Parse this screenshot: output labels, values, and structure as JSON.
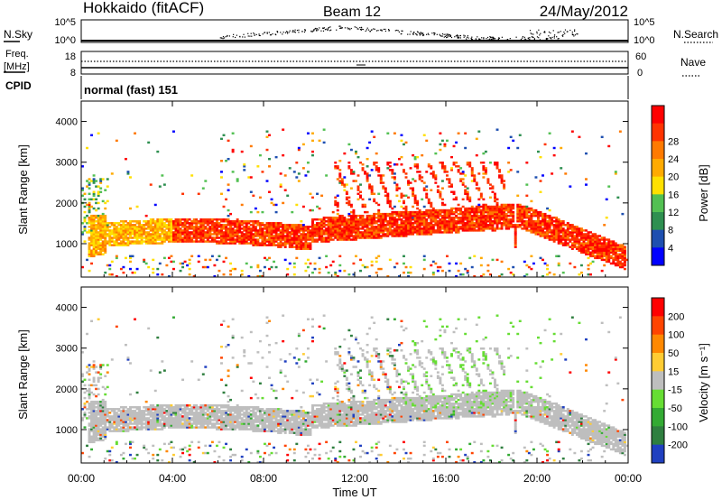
{
  "header": {
    "station": "Hokkaido (fitACF)",
    "beam": "Beam 12",
    "date": "24/May/2012"
  },
  "top_labels": {
    "nsky": "N.Sky",
    "freq_line1": "Freq.",
    "freq_line2": "[MHz]",
    "cpid": "CPID",
    "nsearch": "N.Search",
    "nave": "Nave",
    "cpid_value": "normal (fast) 151"
  },
  "chart_data": [
    {
      "type": "scatter",
      "panel": "noise",
      "ylabel_left": "N.Sky",
      "ylabel_right": "N.Search",
      "left_ticks": [
        "10^5",
        "10^0"
      ],
      "right_ticks": [
        "10^5",
        "10^0"
      ],
      "ylim_log10": [
        0,
        5
      ]
    },
    {
      "type": "line",
      "panel": "frequency",
      "ylabel_left": "Freq. [MHz]",
      "ylabel_right": "Nave",
      "left_ticks": [
        18,
        8
      ],
      "right_ticks": [
        60,
        0
      ]
    },
    {
      "type": "heatmap",
      "panel": "power",
      "ylabel": "Slant Range [km]",
      "y_ticks": [
        1000,
        2000,
        3000,
        4000
      ],
      "ylim": [
        180,
        4500
      ],
      "colorbar": {
        "label": "Power [dB]",
        "ticks": [
          4,
          8,
          12,
          16,
          20,
          24,
          28
        ],
        "colors": [
          "#0000ff",
          "#1e4fb0",
          "#2e8f50",
          "#52c052",
          "#ffe000",
          "#ffaa00",
          "#ff7a00",
          "#ff3300",
          "#ff0000"
        ]
      }
    },
    {
      "type": "heatmap",
      "panel": "velocity",
      "ylabel": "Slant Range [km]",
      "y_ticks": [
        1000,
        2000,
        3000,
        4000
      ],
      "ylim": [
        180,
        4500
      ],
      "ground_scatter_color": "#bebebe",
      "colorbar": {
        "label": "Velocity [m s⁻¹]",
        "ticks": [
          200,
          100,
          50,
          15,
          -15,
          -50,
          -100,
          -200
        ],
        "colors": [
          "#2040c0",
          "#2f7f3f",
          "#33aa33",
          "#66dd33",
          "#bebebe",
          "#ffcc33",
          "#ff8800",
          "#ff4400",
          "#ff0000"
        ]
      }
    }
  ],
  "x_axis": {
    "label": "Time UT",
    "ticks": [
      "00:00",
      "04:00",
      "08:00",
      "12:00",
      "16:00",
      "20:00",
      "00:00"
    ],
    "range_hours": [
      0,
      24
    ]
  }
}
